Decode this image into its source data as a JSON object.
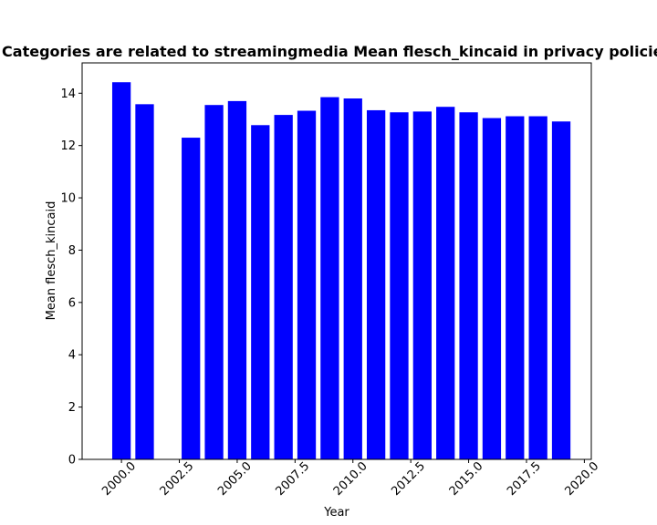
{
  "chart_data": {
    "type": "bar",
    "title": "Categories are related to streamingmedia Mean flesch_kincaid in privacy policies",
    "xlabel": "Year",
    "ylabel": "Mean flesch_kincaid",
    "x": [
      2000,
      2001,
      2003,
      2004,
      2005,
      2006,
      2007,
      2008,
      2009,
      2010,
      2011,
      2012,
      2013,
      2014,
      2015,
      2016,
      2017,
      2018,
      2019
    ],
    "values": [
      14.42,
      13.58,
      12.3,
      13.55,
      13.7,
      12.78,
      13.17,
      13.33,
      13.85,
      13.8,
      13.35,
      13.27,
      13.3,
      13.48,
      13.27,
      13.05,
      13.12,
      13.12,
      12.92
    ],
    "xlim": [
      1998.3,
      2020.3
    ],
    "ylim": [
      0,
      15.16
    ],
    "xticks": [
      2000.0,
      2002.5,
      2005.0,
      2007.5,
      2010.0,
      2012.5,
      2015.0,
      2017.5,
      2020.0
    ],
    "xtick_labels": [
      "2000.0",
      "2002.5",
      "2005.0",
      "2007.5",
      "2010.0",
      "2012.5",
      "2015.0",
      "2017.5",
      "2020.0"
    ],
    "yticks": [
      0,
      2,
      4,
      6,
      8,
      10,
      12,
      14
    ],
    "ytick_labels": [
      "0",
      "2",
      "4",
      "6",
      "8",
      "10",
      "12",
      "14"
    ],
    "bar_color": "#0000ff",
    "grid": false,
    "legend": false
  }
}
